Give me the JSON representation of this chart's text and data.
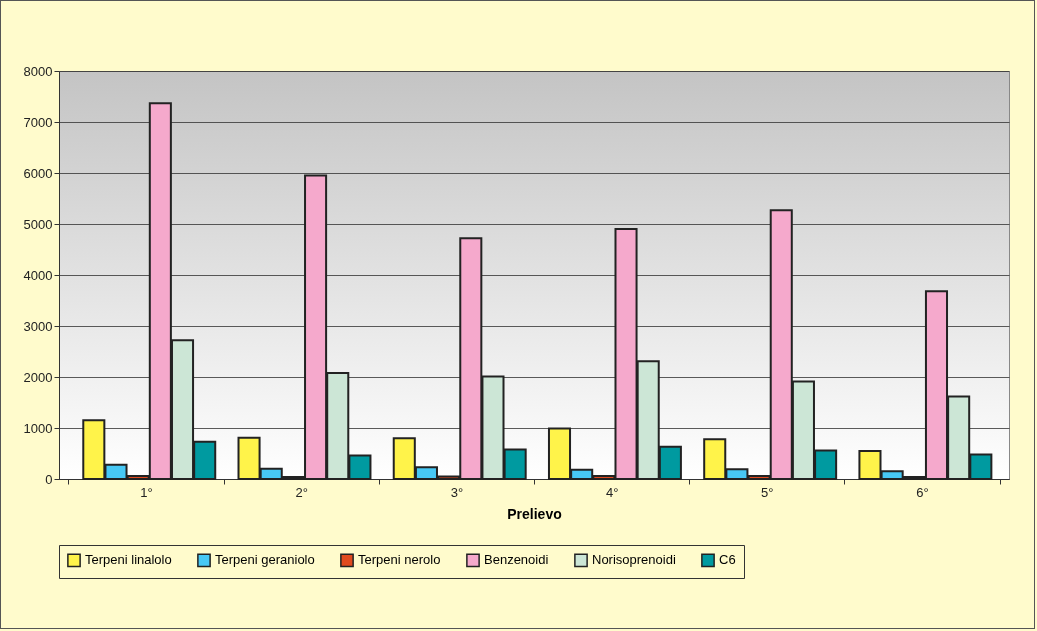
{
  "chart_data": {
    "type": "bar",
    "xlabel": "Prelievo",
    "categories": [
      "1°",
      "2°",
      "3°",
      "4°",
      "5°",
      "6°"
    ],
    "series": [
      {
        "name": "Terpeni linalolo",
        "color": "#fff34a",
        "values": [
          1150,
          810,
          800,
          990,
          780,
          550
        ]
      },
      {
        "name": "Terpeni geraniolo",
        "color": "#47c8f5",
        "values": [
          280,
          200,
          230,
          180,
          190,
          150
        ]
      },
      {
        "name": "Terpeni nerolo",
        "color": "#e04a1f",
        "values": [
          60,
          40,
          50,
          60,
          60,
          40
        ]
      },
      {
        "name": "Benzenoidi",
        "color": "#f5a9cc",
        "values": [
          7370,
          5950,
          4720,
          4900,
          5270,
          3680
        ]
      },
      {
        "name": "Norisoprenoidi",
        "color": "#cce6d6",
        "values": [
          2720,
          2080,
          2010,
          2310,
          1910,
          1620
        ]
      },
      {
        "name": "C6",
        "color": "#009aa0",
        "values": [
          730,
          460,
          580,
          630,
          560,
          480
        ]
      }
    ],
    "ylim": [
      0,
      8000
    ],
    "yticks": [
      0,
      1000,
      2000,
      3000,
      4000,
      5000,
      6000,
      7000,
      8000
    ],
    "grid": "y",
    "legend": "bottom"
  }
}
